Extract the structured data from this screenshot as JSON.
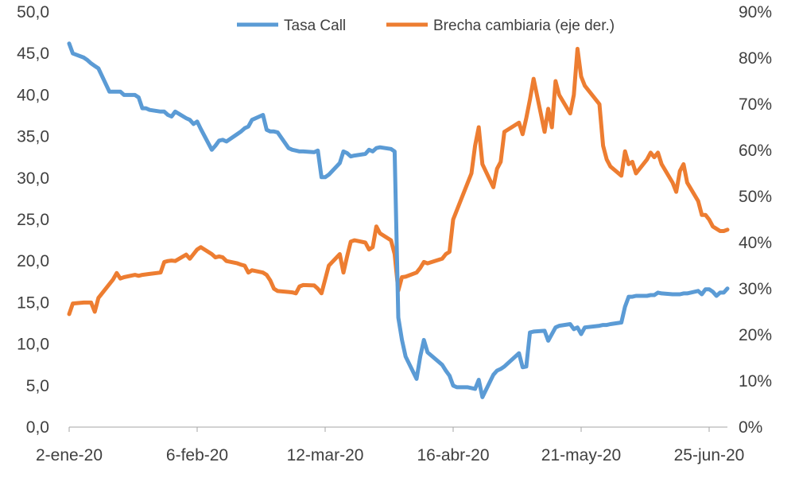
{
  "chart_data": {
    "type": "line",
    "title": "",
    "legend": {
      "placement": "top-center"
    },
    "grid": false,
    "x_ticks": [
      "2-ene-20",
      "6-feb-20",
      "12-mar-20",
      "16-abr-20",
      "21-may-20",
      "25-jun-20"
    ],
    "x_range": [
      "2020-01-02",
      "2020-06-30"
    ],
    "y_left": {
      "ticks": [
        "0,0",
        "5,0",
        "10,0",
        "15,0",
        "20,0",
        "25,0",
        "30,0",
        "35,0",
        "40,0",
        "45,0",
        "50,0"
      ],
      "range": [
        0,
        50
      ]
    },
    "y_right": {
      "ticks": [
        "0%",
        "10%",
        "20%",
        "30%",
        "40%",
        "50%",
        "60%",
        "70%",
        "80%",
        "90%"
      ],
      "range": [
        0,
        90
      ]
    },
    "colors": {
      "tasa": "#5B9BD5",
      "brecha": "#ED7D31",
      "axis": "#A6A6A6"
    },
    "series": [
      {
        "name": "Tasa Call",
        "axis": "left",
        "points": [
          [
            "2020-01-02",
            46.2
          ],
          [
            "2020-01-03",
            45.0
          ],
          [
            "2020-01-06",
            44.5
          ],
          [
            "2020-01-07",
            44.2
          ],
          [
            "2020-01-08",
            43.8
          ],
          [
            "2020-01-09",
            43.5
          ],
          [
            "2020-01-10",
            43.2
          ],
          [
            "2020-01-13",
            40.4
          ],
          [
            "2020-01-14",
            40.4
          ],
          [
            "2020-01-15",
            40.4
          ],
          [
            "2020-01-16",
            40.4
          ],
          [
            "2020-01-17",
            40.0
          ],
          [
            "2020-01-20",
            40.0
          ],
          [
            "2020-01-21",
            39.7
          ],
          [
            "2020-01-22",
            38.4
          ],
          [
            "2020-01-23",
            38.4
          ],
          [
            "2020-01-24",
            38.2
          ],
          [
            "2020-01-27",
            38.0
          ],
          [
            "2020-01-28",
            38.0
          ],
          [
            "2020-01-29",
            37.6
          ],
          [
            "2020-01-30",
            37.4
          ],
          [
            "2020-01-31",
            38.0
          ],
          [
            "2020-02-03",
            37.2
          ],
          [
            "2020-02-04",
            37.0
          ],
          [
            "2020-02-05",
            36.5
          ],
          [
            "2020-02-06",
            36.8
          ],
          [
            "2020-02-07",
            35.9
          ],
          [
            "2020-02-10",
            33.4
          ],
          [
            "2020-02-11",
            33.9
          ],
          [
            "2020-02-12",
            34.5
          ],
          [
            "2020-02-13",
            34.6
          ],
          [
            "2020-02-14",
            34.4
          ],
          [
            "2020-02-17",
            35.3
          ],
          [
            "2020-02-18",
            35.6
          ],
          [
            "2020-02-19",
            36.0
          ],
          [
            "2020-02-20",
            36.2
          ],
          [
            "2020-02-21",
            37.0
          ],
          [
            "2020-02-24",
            37.6
          ],
          [
            "2020-02-25",
            35.8
          ],
          [
            "2020-02-26",
            35.6
          ],
          [
            "2020-02-27",
            35.6
          ],
          [
            "2020-02-28",
            35.5
          ],
          [
            "2020-03-02",
            33.6
          ],
          [
            "2020-03-03",
            33.4
          ],
          [
            "2020-03-04",
            33.3
          ],
          [
            "2020-03-05",
            33.2
          ],
          [
            "2020-03-06",
            33.2
          ],
          [
            "2020-03-09",
            33.1
          ],
          [
            "2020-03-10",
            33.3
          ],
          [
            "2020-03-11",
            30.1
          ],
          [
            "2020-03-12",
            30.1
          ],
          [
            "2020-03-13",
            30.4
          ],
          [
            "2020-03-16",
            31.8
          ],
          [
            "2020-03-17",
            33.2
          ],
          [
            "2020-03-18",
            33.0
          ],
          [
            "2020-03-19",
            32.6
          ],
          [
            "2020-03-20",
            32.7
          ],
          [
            "2020-03-23",
            32.9
          ],
          [
            "2020-03-24",
            33.4
          ],
          [
            "2020-03-25",
            33.2
          ],
          [
            "2020-03-26",
            33.6
          ],
          [
            "2020-03-27",
            33.7
          ],
          [
            "2020-03-30",
            33.5
          ],
          [
            "2020-03-31",
            33.2
          ],
          [
            "2020-04-01",
            13.2
          ],
          [
            "2020-04-02",
            10.5
          ],
          [
            "2020-04-03",
            8.5
          ],
          [
            "2020-04-06",
            5.8
          ],
          [
            "2020-04-07",
            8.5
          ],
          [
            "2020-04-08",
            10.5
          ],
          [
            "2020-04-09",
            9.0
          ],
          [
            "2020-04-13",
            7.5
          ],
          [
            "2020-04-14",
            6.8
          ],
          [
            "2020-04-15",
            6.2
          ],
          [
            "2020-04-16",
            5.0
          ],
          [
            "2020-04-17",
            4.8
          ],
          [
            "2020-04-20",
            4.8
          ],
          [
            "2020-04-21",
            4.7
          ],
          [
            "2020-04-22",
            4.6
          ],
          [
            "2020-04-23",
            5.7
          ],
          [
            "2020-04-24",
            3.6
          ],
          [
            "2020-04-27",
            6.3
          ],
          [
            "2020-04-28",
            6.8
          ],
          [
            "2020-04-29",
            7.0
          ],
          [
            "2020-04-30",
            7.3
          ],
          [
            "2020-05-04",
            8.9
          ],
          [
            "2020-05-05",
            7.2
          ],
          [
            "2020-05-06",
            7.3
          ],
          [
            "2020-05-07",
            11.4
          ],
          [
            "2020-05-08",
            11.5
          ],
          [
            "2020-05-11",
            11.6
          ],
          [
            "2020-05-12",
            10.4
          ],
          [
            "2020-05-13",
            11.2
          ],
          [
            "2020-05-14",
            12.0
          ],
          [
            "2020-05-15",
            12.2
          ],
          [
            "2020-05-18",
            12.4
          ],
          [
            "2020-05-19",
            11.8
          ],
          [
            "2020-05-20",
            12.0
          ],
          [
            "2020-05-21",
            11.2
          ],
          [
            "2020-05-22",
            12.0
          ],
          [
            "2020-05-26",
            12.2
          ],
          [
            "2020-05-27",
            12.3
          ],
          [
            "2020-05-28",
            12.3
          ],
          [
            "2020-05-29",
            12.4
          ],
          [
            "2020-06-01",
            12.6
          ],
          [
            "2020-06-02",
            14.5
          ],
          [
            "2020-06-03",
            15.7
          ],
          [
            "2020-06-04",
            15.7
          ],
          [
            "2020-06-05",
            15.8
          ],
          [
            "2020-06-08",
            15.8
          ],
          [
            "2020-06-09",
            15.9
          ],
          [
            "2020-06-10",
            15.9
          ],
          [
            "2020-06-11",
            16.2
          ],
          [
            "2020-06-12",
            16.1
          ],
          [
            "2020-06-15",
            16.0
          ],
          [
            "2020-06-16",
            16.0
          ],
          [
            "2020-06-17",
            16.0
          ],
          [
            "2020-06-18",
            16.1
          ],
          [
            "2020-06-19",
            16.1
          ],
          [
            "2020-06-22",
            16.4
          ],
          [
            "2020-06-23",
            16.0
          ],
          [
            "2020-06-24",
            16.6
          ],
          [
            "2020-06-25",
            16.6
          ],
          [
            "2020-06-26",
            16.3
          ],
          [
            "2020-06-27",
            15.8
          ],
          [
            "2020-06-28",
            16.2
          ],
          [
            "2020-06-29",
            16.2
          ],
          [
            "2020-06-30",
            16.7
          ]
        ]
      },
      {
        "name": "Brecha cambiaria (eje der.)",
        "axis": "right",
        "points": [
          [
            "2020-01-02",
            24.5
          ],
          [
            "2020-01-03",
            26.8
          ],
          [
            "2020-01-06",
            27.0
          ],
          [
            "2020-01-07",
            27.0
          ],
          [
            "2020-01-08",
            27.0
          ],
          [
            "2020-01-09",
            25.0
          ],
          [
            "2020-01-10",
            28.0
          ],
          [
            "2020-01-13",
            31.0
          ],
          [
            "2020-01-14",
            32.0
          ],
          [
            "2020-01-15",
            33.4
          ],
          [
            "2020-01-16",
            32.2
          ],
          [
            "2020-01-17",
            32.5
          ],
          [
            "2020-01-20",
            33.0
          ],
          [
            "2020-01-21",
            32.8
          ],
          [
            "2020-01-22",
            33.0
          ],
          [
            "2020-01-23",
            33.1
          ],
          [
            "2020-01-24",
            33.2
          ],
          [
            "2020-01-27",
            33.5
          ],
          [
            "2020-01-28",
            35.8
          ],
          [
            "2020-01-29",
            36.0
          ],
          [
            "2020-01-30",
            36.1
          ],
          [
            "2020-01-31",
            36.0
          ],
          [
            "2020-02-03",
            37.4
          ],
          [
            "2020-02-04",
            36.5
          ],
          [
            "2020-02-05",
            37.5
          ],
          [
            "2020-02-06",
            38.5
          ],
          [
            "2020-02-07",
            39.0
          ],
          [
            "2020-02-10",
            37.5
          ],
          [
            "2020-02-11",
            36.8
          ],
          [
            "2020-02-12",
            37.0
          ],
          [
            "2020-02-13",
            36.8
          ],
          [
            "2020-02-14",
            36.0
          ],
          [
            "2020-02-17",
            35.5
          ],
          [
            "2020-02-18",
            35.2
          ],
          [
            "2020-02-19",
            35.0
          ],
          [
            "2020-02-20",
            33.5
          ],
          [
            "2020-02-21",
            34.0
          ],
          [
            "2020-02-24",
            33.5
          ],
          [
            "2020-02-25",
            33.0
          ],
          [
            "2020-02-26",
            31.8
          ],
          [
            "2020-02-27",
            30.0
          ],
          [
            "2020-02-28",
            29.5
          ],
          [
            "2020-03-02",
            29.3
          ],
          [
            "2020-03-03",
            29.2
          ],
          [
            "2020-03-04",
            29.0
          ],
          [
            "2020-03-05",
            30.5
          ],
          [
            "2020-03-06",
            30.8
          ],
          [
            "2020-03-09",
            30.7
          ],
          [
            "2020-03-10",
            30.0
          ],
          [
            "2020-03-11",
            29.0
          ],
          [
            "2020-03-12",
            32.0
          ],
          [
            "2020-03-13",
            35.0
          ],
          [
            "2020-03-16",
            37.5
          ],
          [
            "2020-03-17",
            33.5
          ],
          [
            "2020-03-18",
            37.0
          ],
          [
            "2020-03-19",
            40.2
          ],
          [
            "2020-03-20",
            40.5
          ],
          [
            "2020-03-23",
            40.0
          ],
          [
            "2020-03-24",
            38.5
          ],
          [
            "2020-03-25",
            39.0
          ],
          [
            "2020-03-26",
            43.5
          ],
          [
            "2020-03-27",
            42.0
          ],
          [
            "2020-03-30",
            40.5
          ],
          [
            "2020-03-31",
            37.5
          ],
          [
            "2020-04-01",
            29.6
          ],
          [
            "2020-04-02",
            32.5
          ],
          [
            "2020-04-03",
            32.6
          ],
          [
            "2020-04-06",
            33.5
          ],
          [
            "2020-04-07",
            34.5
          ],
          [
            "2020-04-08",
            35.8
          ],
          [
            "2020-04-09",
            35.5
          ],
          [
            "2020-04-13",
            36.5
          ],
          [
            "2020-04-14",
            37.5
          ],
          [
            "2020-04-15",
            38.0
          ],
          [
            "2020-04-16",
            45.0
          ],
          [
            "2020-04-17",
            47.0
          ],
          [
            "2020-04-20",
            53.0
          ],
          [
            "2020-04-21",
            55.0
          ],
          [
            "2020-04-22",
            61.0
          ],
          [
            "2020-04-23",
            65.0
          ],
          [
            "2020-04-24",
            57.0
          ],
          [
            "2020-04-27",
            52.0
          ],
          [
            "2020-04-28",
            56.0
          ],
          [
            "2020-04-29",
            57.5
          ],
          [
            "2020-04-30",
            64.0
          ],
          [
            "2020-05-04",
            66.0
          ],
          [
            "2020-05-05",
            63.5
          ],
          [
            "2020-05-06",
            67.0
          ],
          [
            "2020-05-07",
            71.0
          ],
          [
            "2020-05-08",
            75.5
          ],
          [
            "2020-05-11",
            64.0
          ],
          [
            "2020-05-12",
            69.0
          ],
          [
            "2020-05-13",
            65.0
          ],
          [
            "2020-05-14",
            75.0
          ],
          [
            "2020-05-15",
            72.0
          ],
          [
            "2020-05-18",
            68.0
          ],
          [
            "2020-05-19",
            72.0
          ],
          [
            "2020-05-20",
            82.0
          ],
          [
            "2020-05-21",
            76.0
          ],
          [
            "2020-05-22",
            74.0
          ],
          [
            "2020-05-26",
            70.0
          ],
          [
            "2020-05-27",
            61.0
          ],
          [
            "2020-05-28",
            58.0
          ],
          [
            "2020-05-29",
            56.5
          ],
          [
            "2020-06-01",
            54.5
          ],
          [
            "2020-06-02",
            59.8
          ],
          [
            "2020-06-03",
            57.0
          ],
          [
            "2020-06-04",
            57.5
          ],
          [
            "2020-06-05",
            55.0
          ],
          [
            "2020-06-08",
            58.0
          ],
          [
            "2020-06-09",
            59.5
          ],
          [
            "2020-06-10",
            58.5
          ],
          [
            "2020-06-11",
            59.5
          ],
          [
            "2020-06-12",
            57.0
          ],
          [
            "2020-06-15",
            53.0
          ],
          [
            "2020-06-16",
            51.0
          ],
          [
            "2020-06-17",
            55.5
          ],
          [
            "2020-06-18",
            57.0
          ],
          [
            "2020-06-19",
            53.0
          ],
          [
            "2020-06-22",
            49.0
          ],
          [
            "2020-06-23",
            46.0
          ],
          [
            "2020-06-24",
            46.0
          ],
          [
            "2020-06-25",
            45.0
          ],
          [
            "2020-06-26",
            43.5
          ],
          [
            "2020-06-27",
            43.0
          ],
          [
            "2020-06-28",
            42.5
          ],
          [
            "2020-06-29",
            42.5
          ],
          [
            "2020-06-30",
            42.8
          ]
        ]
      }
    ]
  }
}
